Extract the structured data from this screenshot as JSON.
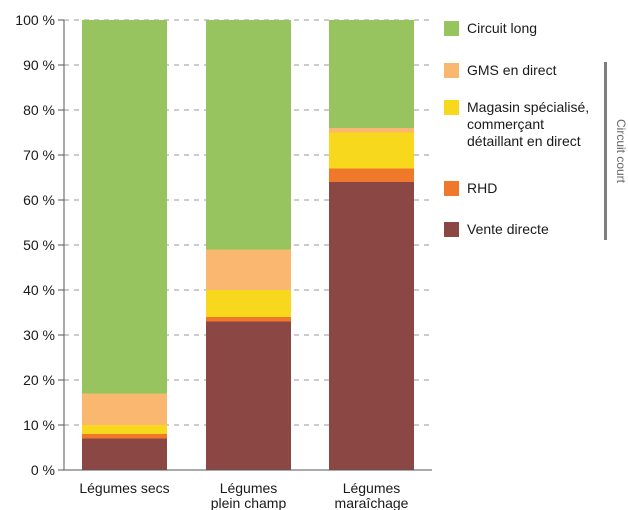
{
  "chart_data": {
    "type": "bar",
    "stacked": true,
    "categories": [
      [
        "Légumes secs"
      ],
      [
        "Légumes",
        "plein champ"
      ],
      [
        "Légumes",
        "maraîchage"
      ]
    ],
    "series": [
      {
        "name": "Vente directe",
        "color": "#8b4744",
        "values": [
          7,
          33,
          64
        ]
      },
      {
        "name": "RHD",
        "color": "#f0782a",
        "values": [
          1,
          1,
          3
        ]
      },
      {
        "name": "Magasin spécialisé, commerçant détaillant en direct",
        "label_lines": [
          "Magasin spécialisé,",
          "commerçant",
          "détaillant en direct"
        ],
        "color": "#f7d81c",
        "values": [
          2,
          6,
          8
        ]
      },
      {
        "name": "GMS en direct",
        "color": "#f9b770",
        "values": [
          7,
          9,
          1
        ]
      },
      {
        "name": "Circuit long",
        "color": "#98c45f",
        "values": [
          83,
          51,
          24
        ]
      }
    ],
    "legend_order": [
      "Circuit long",
      "GMS en direct",
      "Magasin spécialisé, commerçant détaillant en direct",
      "RHD",
      "Vente directe"
    ],
    "y_ticks": [
      "0 %",
      "10 %",
      "20 %",
      "30 %",
      "40 %",
      "50 %",
      "60 %",
      "70 %",
      "80 %",
      "90 %",
      "100 %"
    ],
    "ylim": [
      0,
      100
    ],
    "grid": true,
    "legend_position": "right",
    "bracket_label": "Circuit court"
  }
}
